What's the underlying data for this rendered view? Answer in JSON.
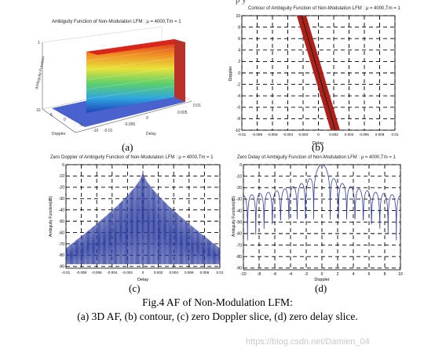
{
  "header_fragment": "p  y",
  "panels": {
    "a": {
      "label": "(a)",
      "title": "Ambiguity Function of Non-Modulation LFM : μ = 4000,Tm = 1",
      "zlabel": "Ambiguity Function",
      "xlabel": "Doppler",
      "ylabel": "Delay",
      "ticks": [
        "1",
        "10",
        "5",
        "0",
        "-5",
        "-10",
        "-0.01",
        "-0.005",
        "0",
        "0.005",
        "0.01"
      ]
    },
    "b": {
      "label": "(b)",
      "title": "Contour of Ambiguity Function of Non-Modulation LFM : μ = 4000,Tm = 1",
      "xlabel": "Delay",
      "ylabel": "Doppler",
      "yticks": [
        "10",
        "8",
        "6",
        "4",
        "2",
        "0",
        "-2",
        "-4",
        "-6",
        "-8",
        "-10"
      ],
      "xticks": [
        "-0.01",
        "-0.008",
        "-0.006",
        "-0.004",
        "-0.002",
        "0",
        "0.002",
        "0.004",
        "0.006",
        "0.008",
        "0.01"
      ]
    },
    "c": {
      "label": "(c)",
      "title": "Zero Doppler of Ambiguity Function of Non-Modulation LFM : μ = 4000,Tm = 1",
      "xlabel": "Delay",
      "ylabel": "Ambiguity Function(dB)",
      "yticks": [
        "0",
        "-10",
        "-20",
        "-30",
        "-40",
        "-50",
        "-60",
        "-70",
        "-80",
        "-90"
      ],
      "xticks": [
        "-0.01",
        "-0.008",
        "-0.006",
        "-0.004",
        "-0.002",
        "0",
        "0.002",
        "0.004",
        "0.006",
        "0.008",
        "0.01"
      ]
    },
    "d": {
      "label": "(d)",
      "title": "Zero Delay of Ambiguity Function of Non-Modulation LFM : μ = 4000,Tm = 1",
      "xlabel": "Doppler",
      "ylabel": "Ambiguity Function(dB)",
      "yticks": [
        "0",
        "-10",
        "-20",
        "-30",
        "-40",
        "-50",
        "-60",
        "-70",
        "-80",
        "-90"
      ],
      "xticks": [
        "-10",
        "-8",
        "-6",
        "-4",
        "-2",
        "0",
        "2",
        "4",
        "6",
        "8",
        "10"
      ]
    }
  },
  "caption": {
    "line1": "Fig.4 AF of Non-Modulation LFM:",
    "line2": "(a) 3D AF, (b) contour, (c) zero Doppler slice, (d) zero delay slice."
  },
  "watermark": "https://blog.csdn.net/Damien_04",
  "colors": {
    "line": "#2f3fa0",
    "contour": "#b0201a",
    "accent3d": "#e04030"
  }
}
